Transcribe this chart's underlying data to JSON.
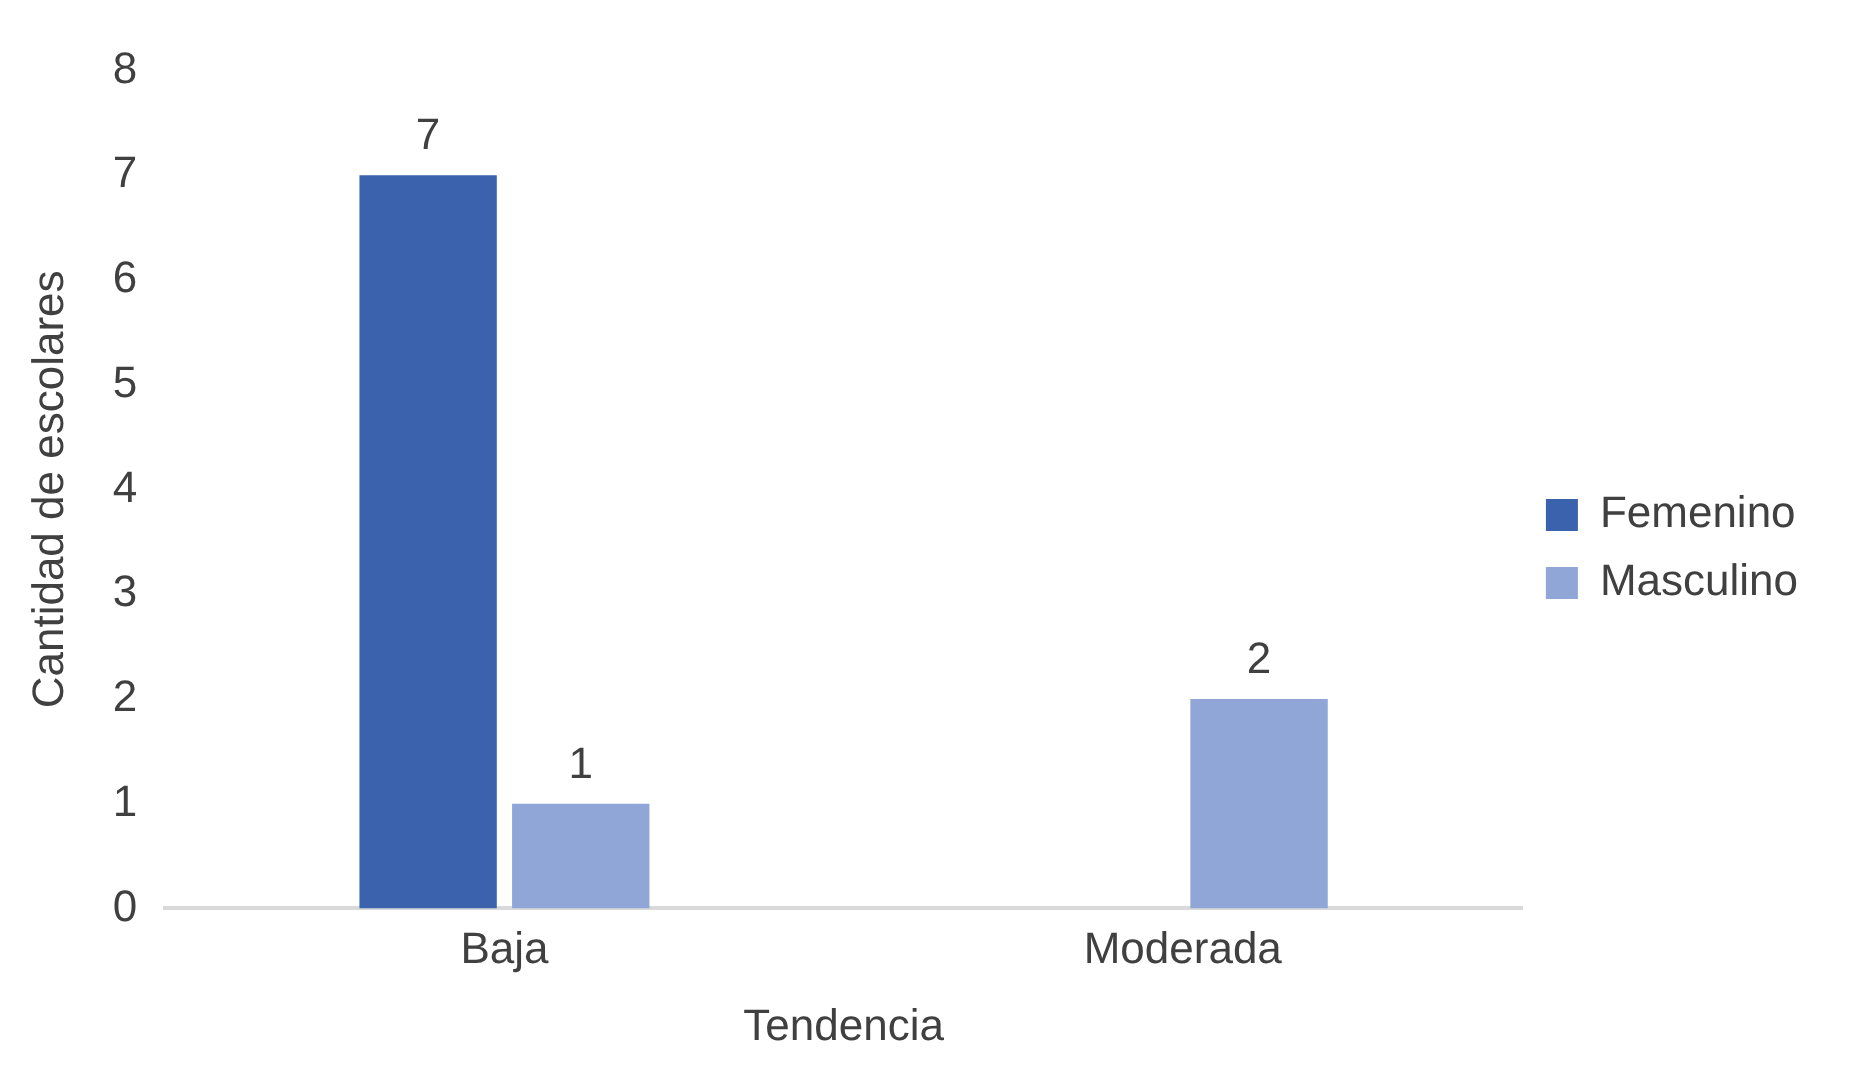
{
  "chart_data": {
    "type": "bar",
    "xlabel": "Tendencia",
    "ylabel": "Cantidad de escolares",
    "categories": [
      "Baja",
      "Moderada"
    ],
    "series": [
      {
        "name": "Femenino",
        "color": "#3a62ad",
        "values": [
          7,
          null
        ],
        "value_labels": [
          "7",
          null
        ]
      },
      {
        "name": "Masculino",
        "color": "#8fa6d7",
        "values": [
          1,
          2
        ],
        "value_labels": [
          "1",
          "2"
        ]
      }
    ],
    "ylim": [
      0,
      8
    ],
    "yticks": [
      0,
      1,
      2,
      3,
      4,
      5,
      6,
      7,
      8
    ],
    "grid": false,
    "legend": "right"
  }
}
